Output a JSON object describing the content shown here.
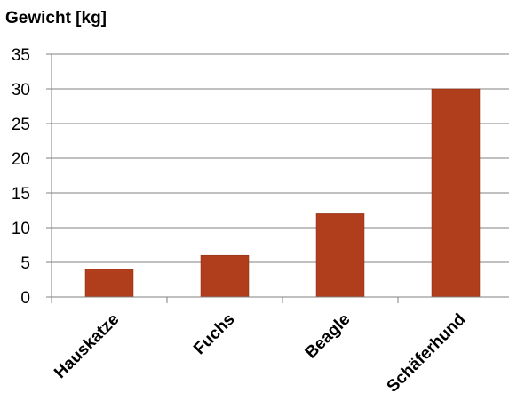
{
  "chart_data": {
    "type": "bar",
    "ylabel": "Gewicht [kg]",
    "xlabel": "",
    "categories": [
      "Hauskatze",
      "Fuchs",
      "Beagle",
      "Schäferhund"
    ],
    "values": [
      4,
      6,
      12,
      30
    ],
    "ylim": [
      0,
      35
    ],
    "yticks": [
      0,
      5,
      10,
      15,
      20,
      25,
      30,
      35
    ],
    "grid": true,
    "legend": "none",
    "bar_color": "#b03d1c"
  }
}
